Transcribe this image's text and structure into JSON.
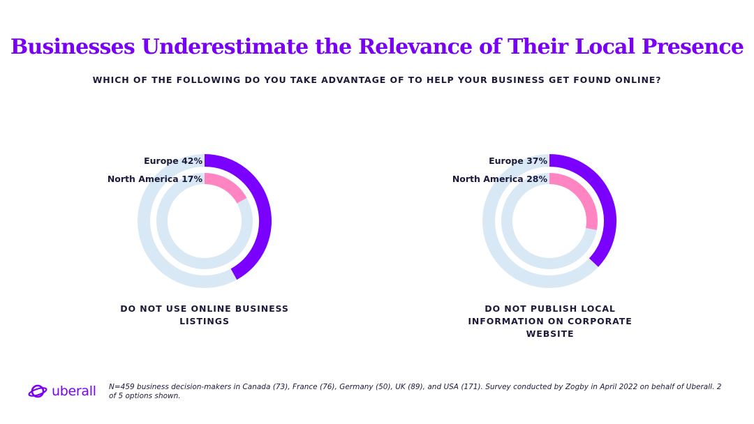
{
  "title": "Businesses Underestimate the Relevance of Their Local Presence",
  "subtitle": "WHICH OF THE FOLLOWING DO YOU TAKE ADVANTAGE OF TO HELP YOUR BUSINESS GET FOUND ONLINE?",
  "colors": {
    "europe": "#7a00ff",
    "north_america": "#ff85c2",
    "track": "#d8e8f5",
    "title": "#7a00f5"
  },
  "chart_data": [
    {
      "type": "pie",
      "caption": "DO NOT USE ONLINE BUSINESS LISTINGS",
      "series": [
        {
          "name": "Europe",
          "value": 42,
          "label": "Europe 42%"
        },
        {
          "name": "North America",
          "value": 17,
          "label": "North America 17%"
        }
      ]
    },
    {
      "type": "pie",
      "caption": "DO NOT PUBLISH LOCAL INFORMATION ON CORPORATE WEBSITE",
      "series": [
        {
          "name": "Europe",
          "value": 37,
          "label": "Europe 37%"
        },
        {
          "name": "North America",
          "value": 28,
          "label": "North America 28%"
        }
      ]
    }
  ],
  "footer": {
    "logo_text": "uberall",
    "logo_icon": "planet-ring-icon",
    "note": "N=459 business decision-makers in Canada (73), France (76), Germany (50), UK (89), and USA (171). Survey conducted by Zogby in April 2022 on behalf of Uberall. 2 of 5 options shown."
  }
}
